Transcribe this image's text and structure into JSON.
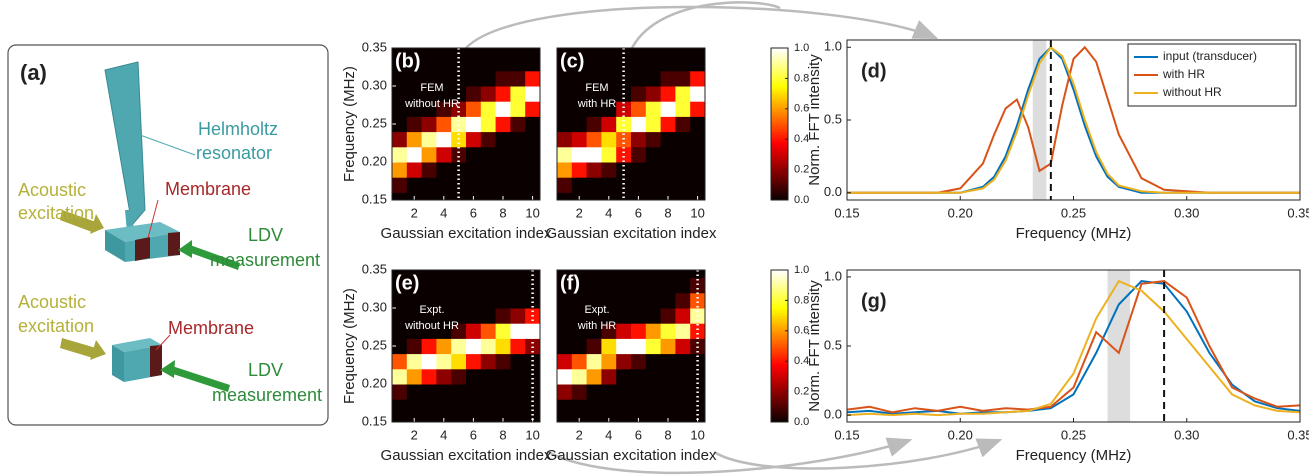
{
  "diagram": {
    "panel_label": "(a)",
    "top": {
      "resonator": [
        "Helmholtz",
        "resonator"
      ],
      "excitation": [
        "Acoustic",
        "excitation"
      ],
      "membrane": "Membrane",
      "measurement": [
        "LDV",
        "measurement"
      ]
    },
    "bottom": {
      "excitation": [
        "Acoustic",
        "excitation"
      ],
      "membrane": "Membrane",
      "measurement": [
        "LDV",
        "measurement"
      ]
    }
  },
  "chart_data": [
    {
      "type": "heatmap",
      "panel_label": "(b)",
      "annotation": [
        "FEM",
        "without HR"
      ],
      "xlabel": "Gaussian excitation index",
      "ylabel": "Frequency (MHz)",
      "x": [
        1,
        2,
        3,
        4,
        5,
        6,
        7,
        8,
        9,
        10
      ],
      "y": [
        0.15,
        0.17,
        0.19,
        0.21,
        0.23,
        0.25,
        0.27,
        0.29,
        0.31,
        0.33,
        0.35
      ],
      "z": [
        [
          0,
          0.1,
          0.6,
          0.9,
          0.2,
          0,
          0,
          0,
          0,
          0,
          0
        ],
        [
          0,
          0,
          0.3,
          1,
          0.6,
          0.1,
          0,
          0,
          0,
          0,
          0
        ],
        [
          0,
          0,
          0.1,
          0.6,
          0.9,
          0.2,
          0,
          0,
          0,
          0,
          0
        ],
        [
          0,
          0,
          0,
          0.3,
          1,
          0.5,
          0.1,
          0,
          0,
          0,
          0
        ],
        [
          0,
          0,
          0,
          0.1,
          0.7,
          0.9,
          0.2,
          0,
          0,
          0,
          0
        ],
        [
          0,
          0,
          0,
          0,
          0.3,
          1,
          0.5,
          0.1,
          0,
          0,
          0
        ],
        [
          0,
          0,
          0,
          0,
          0.1,
          0.8,
          0.8,
          0.2,
          0,
          0,
          0
        ],
        [
          0,
          0,
          0,
          0,
          0,
          0.4,
          1,
          0.4,
          0.1,
          0,
          0
        ],
        [
          0,
          0,
          0,
          0,
          0,
          0.1,
          0.8,
          0.8,
          0.1,
          0,
          0
        ],
        [
          0,
          0,
          0,
          0,
          0,
          0,
          0.4,
          1,
          0.4,
          0,
          0
        ]
      ],
      "xlim": [
        0.5,
        10.5
      ],
      "ylim": [
        0.15,
        0.35
      ],
      "xticks": [
        2,
        4,
        6,
        8,
        10
      ],
      "yticks": [
        0.15,
        {
          "value": 0.2,
          "label": "0.20"
        },
        0.25,
        {
          "value": 0.3,
          "label": "0.30"
        },
        0.35
      ],
      "vline_x": 5
    },
    {
      "type": "heatmap",
      "panel_label": "(c)",
      "annotation": [
        "FEM",
        "with HR"
      ],
      "xlabel": "Gaussian excitation index",
      "x": [
        1,
        2,
        3,
        4,
        5,
        6,
        7,
        8,
        9,
        10
      ],
      "y": [
        0.15,
        0.17,
        0.19,
        0.21,
        0.23,
        0.25,
        0.27,
        0.29,
        0.31,
        0.33,
        0.35
      ],
      "z": [
        [
          0,
          0.1,
          0.6,
          0.9,
          0.2,
          0,
          0,
          0,
          0,
          0,
          0
        ],
        [
          0,
          0,
          0.4,
          1,
          0.3,
          0,
          0,
          0,
          0,
          0,
          0
        ],
        [
          0,
          0,
          0.2,
          1,
          0.5,
          0.1,
          0,
          0,
          0,
          0,
          0
        ],
        [
          0,
          0,
          0.1,
          0.8,
          0.7,
          0.3,
          0,
          0,
          0,
          0,
          0
        ],
        [
          0,
          0,
          0,
          0.4,
          0.5,
          0.8,
          0.3,
          0,
          0,
          0,
          0
        ],
        [
          0,
          0,
          0,
          0.1,
          0.2,
          1,
          0.5,
          0.1,
          0,
          0,
          0
        ],
        [
          0,
          0,
          0,
          0,
          0.1,
          0.8,
          0.8,
          0.2,
          0,
          0,
          0
        ],
        [
          0,
          0,
          0,
          0,
          0,
          0.4,
          1,
          0.4,
          0.1,
          0,
          0
        ],
        [
          0,
          0,
          0,
          0,
          0,
          0.1,
          0.8,
          0.8,
          0.1,
          0,
          0
        ],
        [
          0,
          0,
          0,
          0,
          0,
          0,
          0.4,
          1,
          0.4,
          0,
          0
        ]
      ],
      "xlim": [
        0.5,
        10.5
      ],
      "ylim": [
        0.15,
        0.35
      ],
      "xticks": [
        2,
        4,
        6,
        8,
        10
      ],
      "vline_x": 5,
      "colorbar": {
        "clim": [
          0,
          1
        ],
        "ticks": [
          {
            "value": 0,
            "label": "0.0"
          },
          0.2,
          0.4,
          0.6,
          0.8,
          {
            "value": 1,
            "label": "1.0"
          }
        ]
      }
    },
    {
      "type": "line",
      "panel_label": "(d)",
      "xlabel": "Frequency (MHz)",
      "ylabel": "Norm. FFT intensity",
      "x": [
        0.15,
        0.17,
        0.19,
        0.2,
        0.21,
        0.215,
        0.22,
        0.225,
        0.23,
        0.235,
        0.24,
        0.245,
        0.25,
        0.255,
        0.26,
        0.265,
        0.27,
        0.28,
        0.29,
        0.31,
        0.35
      ],
      "series": [
        {
          "name": "input (transducer)",
          "color": "#0072bd",
          "values": [
            0,
            0,
            0,
            0,
            0.04,
            0.11,
            0.25,
            0.46,
            0.71,
            0.92,
            1,
            0.92,
            0.71,
            0.46,
            0.25,
            0.11,
            0.04,
            0,
            0,
            0,
            0
          ]
        },
        {
          "name": "with HR",
          "color": "#d95319",
          "values": [
            0,
            0,
            0,
            0.03,
            0.2,
            0.4,
            0.58,
            0.64,
            0.45,
            0.15,
            0.2,
            0.6,
            0.92,
            1,
            0.9,
            0.65,
            0.4,
            0.1,
            0.02,
            0,
            0
          ]
        },
        {
          "name": "without HR",
          "color": "#edb120",
          "values": [
            0,
            0,
            0,
            0,
            0.03,
            0.09,
            0.22,
            0.42,
            0.67,
            0.89,
            1,
            0.94,
            0.75,
            0.5,
            0.28,
            0.13,
            0.05,
            0.01,
            0,
            0,
            0
          ]
        }
      ],
      "xlim": [
        0.15,
        0.35
      ],
      "ylim": [
        -0.05,
        1.05
      ],
      "xticks": [
        0.15,
        {
          "value": 0.2,
          "label": "0.20"
        },
        0.25,
        {
          "value": 0.3,
          "label": "0.30"
        },
        0.35
      ],
      "yticks": [
        {
          "value": 0,
          "label": "0.0"
        },
        0.5,
        {
          "value": 1,
          "label": "1.0"
        }
      ],
      "highlight_band": [
        0.232,
        0.238
      ],
      "vline_x": 0.24,
      "legend": "upper right"
    },
    {
      "type": "heatmap",
      "panel_label": "(e)",
      "annotation": [
        "Expt.",
        "without HR"
      ],
      "xlabel": "Gaussian excitation index",
      "ylabel": "Frequency (MHz)",
      "x": [
        1,
        2,
        3,
        4,
        5,
        6,
        7,
        8,
        9,
        10
      ],
      "y": [
        0.15,
        0.17,
        0.19,
        0.21,
        0.23,
        0.25,
        0.27,
        0.29,
        0.31,
        0.33,
        0.35
      ],
      "z": [
        [
          0,
          0,
          0.1,
          0.9,
          0.5,
          0,
          0,
          0,
          0,
          0,
          0
        ],
        [
          0,
          0,
          0,
          0.6,
          0.9,
          0.1,
          0,
          0,
          0,
          0,
          0
        ],
        [
          0,
          0,
          0,
          0.4,
          1,
          0.4,
          0,
          0,
          0,
          0,
          0
        ],
        [
          0,
          0,
          0,
          0.2,
          0.9,
          0.6,
          0,
          0,
          0,
          0,
          0
        ],
        [
          0,
          0,
          0,
          0.1,
          0.7,
          0.9,
          0.1,
          0,
          0,
          0,
          0
        ],
        [
          0,
          0,
          0,
          0,
          0.4,
          1,
          0.3,
          0,
          0,
          0,
          0
        ],
        [
          0,
          0,
          0,
          0,
          0.2,
          0.9,
          0.5,
          0,
          0,
          0,
          0
        ],
        [
          0,
          0,
          0,
          0,
          0.1,
          0.7,
          0.8,
          0.1,
          0,
          0,
          0
        ],
        [
          0,
          0,
          0,
          0,
          0,
          0.4,
          1,
          0.2,
          0,
          0,
          0
        ],
        [
          0,
          0,
          0,
          0,
          0,
          0.2,
          1,
          0.4,
          0,
          0,
          0
        ]
      ],
      "xlim": [
        0.5,
        10.5
      ],
      "ylim": [
        0.15,
        0.35
      ],
      "xticks": [
        2,
        4,
        6,
        8,
        10
      ],
      "yticks": [
        0.15,
        {
          "value": 0.2,
          "label": "0.20"
        },
        0.25,
        {
          "value": 0.3,
          "label": "0.30"
        },
        0.35
      ],
      "vline_x": 10
    },
    {
      "type": "heatmap",
      "panel_label": "(f)",
      "annotation": [
        "Expt.",
        "with HR"
      ],
      "xlabel": "Gaussian excitation index",
      "x": [
        1,
        2,
        3,
        4,
        5,
        6,
        7,
        8,
        9,
        10
      ],
      "y": [
        0.15,
        0.17,
        0.19,
        0.21,
        0.23,
        0.25,
        0.27,
        0.29,
        0.31,
        0.33,
        0.35
      ],
      "z": [
        [
          0,
          0,
          0.2,
          1,
          0.3,
          0,
          0,
          0,
          0,
          0,
          0
        ],
        [
          0,
          0,
          0.1,
          0.9,
          0.5,
          0,
          0,
          0,
          0,
          0,
          0
        ],
        [
          0,
          0,
          0,
          0.6,
          0.9,
          0.1,
          0,
          0,
          0,
          0,
          0
        ],
        [
          0,
          0,
          0,
          0.2,
          0.6,
          0.7,
          0.1,
          0,
          0,
          0,
          0
        ],
        [
          0,
          0,
          0,
          0,
          0.2,
          1,
          0.3,
          0,
          0,
          0,
          0
        ],
        [
          0,
          0,
          0,
          0,
          0.1,
          1,
          0.4,
          0,
          0,
          0,
          0
        ],
        [
          0,
          0,
          0,
          0,
          0,
          0.8,
          0.6,
          0,
          0,
          0,
          0
        ],
        [
          0,
          0,
          0,
          0,
          0,
          0.6,
          0.8,
          0.1,
          0,
          0,
          0
        ],
        [
          0,
          0,
          0,
          0,
          0,
          0.3,
          0.9,
          0.3,
          0.1,
          0,
          0
        ],
        [
          0,
          0,
          0,
          0,
          0,
          0.1,
          0.4,
          0.9,
          0.5,
          0.1,
          0
        ]
      ],
      "xlim": [
        0.5,
        10.5
      ],
      "ylim": [
        0.15,
        0.35
      ],
      "xticks": [
        2,
        4,
        6,
        8,
        10
      ],
      "vline_x": 10,
      "colorbar": {
        "clim": [
          0,
          1
        ],
        "ticks": [
          {
            "value": 0,
            "label": "0.0"
          },
          0.2,
          0.4,
          0.6,
          0.8,
          {
            "value": 1,
            "label": "1.0"
          }
        ]
      }
    },
    {
      "type": "line",
      "panel_label": "(g)",
      "xlabel": "Frequency (MHz)",
      "ylabel": "Norm. FFT intensity",
      "x": [
        0.15,
        0.16,
        0.17,
        0.18,
        0.19,
        0.2,
        0.21,
        0.22,
        0.23,
        0.24,
        0.25,
        0.26,
        0.27,
        0.28,
        0.29,
        0.3,
        0.31,
        0.32,
        0.33,
        0.34,
        0.35
      ],
      "series": [
        {
          "color": "#0072bd",
          "values": [
            0.02,
            0.03,
            0.01,
            0.02,
            0.03,
            0.01,
            0.02,
            0.02,
            0.03,
            0.05,
            0.15,
            0.45,
            0.8,
            0.97,
            0.95,
            0.75,
            0.45,
            0.22,
            0.1,
            0.05,
            0.03
          ]
        },
        {
          "color": "#d95319",
          "values": [
            0.04,
            0.06,
            0.02,
            0.05,
            0.03,
            0.06,
            0.03,
            0.05,
            0.04,
            0.06,
            0.2,
            0.6,
            0.45,
            0.95,
            0.97,
            0.85,
            0.5,
            0.2,
            0.12,
            0.06,
            0.07
          ]
        },
        {
          "color": "#edb120",
          "values": [
            0,
            0.01,
            0,
            0.01,
            0,
            0.01,
            0.01,
            0.02,
            0.03,
            0.08,
            0.3,
            0.7,
            0.97,
            0.9,
            0.75,
            0.55,
            0.35,
            0.15,
            0.07,
            0.03,
            0.02
          ]
        }
      ],
      "xlim": [
        0.15,
        0.35
      ],
      "ylim": [
        -0.05,
        1.05
      ],
      "xticks": [
        0.15,
        {
          "value": 0.2,
          "label": "0.20"
        },
        0.25,
        {
          "value": 0.3,
          "label": "0.30"
        },
        0.35
      ],
      "yticks": [
        {
          "value": 0,
          "label": "0.0"
        },
        0.5,
        {
          "value": 1,
          "label": "1.0"
        }
      ],
      "highlight_band": [
        0.265,
        0.275
      ],
      "vline_x": 0.29
    }
  ]
}
